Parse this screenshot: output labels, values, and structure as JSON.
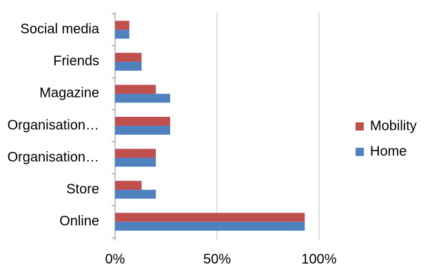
{
  "chart_data": {
    "type": "hbar",
    "categories": [
      "Social media",
      "Friends",
      "Magazine",
      "Organisation…",
      "Organisation…",
      "Store",
      "Online"
    ],
    "series": [
      {
        "name": "Mobility",
        "color": "#c0504d",
        "values": [
          7,
          13,
          20,
          27,
          20,
          13,
          93
        ]
      },
      {
        "name": "Home",
        "color": "#4f81bd",
        "values": [
          7,
          13,
          27,
          27,
          20,
          20,
          93
        ]
      }
    ],
    "xlim": [
      0,
      100
    ],
    "xticks": [
      {
        "value": 0,
        "label": "0%"
      },
      {
        "value": 50,
        "label": "50%"
      },
      {
        "value": 100,
        "label": "100%"
      }
    ],
    "grid": true,
    "legend": "right"
  }
}
